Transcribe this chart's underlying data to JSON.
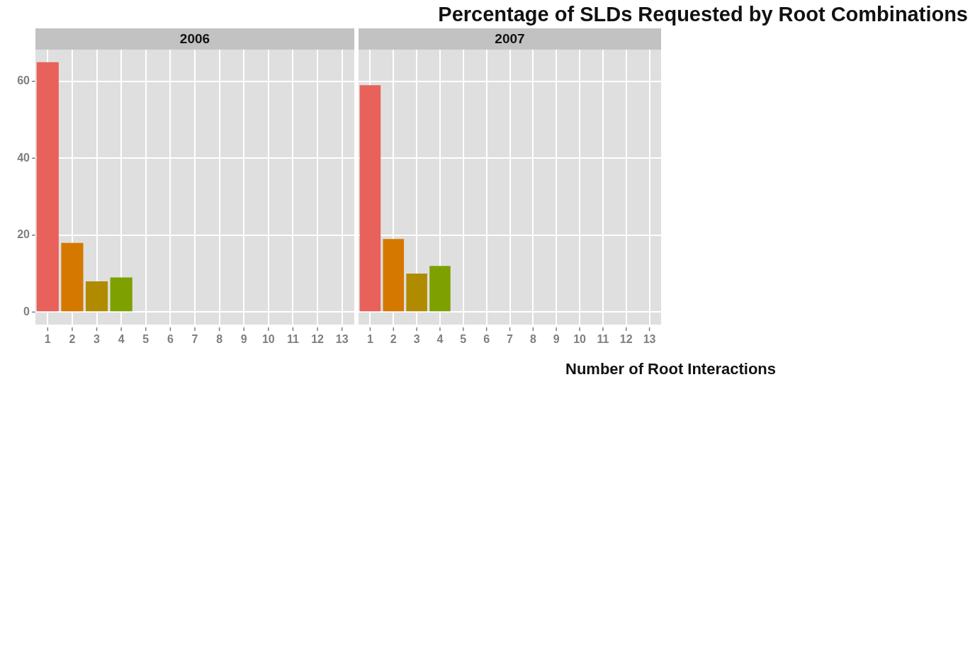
{
  "chart_data": [
    {
      "type": "bar",
      "subtitle": "2006",
      "categories": [
        "1",
        "2",
        "3",
        "4",
        "5",
        "6",
        "7",
        "8",
        "9",
        "10",
        "11",
        "12",
        "13"
      ],
      "values": [
        65,
        18,
        8,
        9,
        null,
        null,
        null,
        null,
        null,
        null,
        null,
        null,
        null
      ],
      "colors": [
        "#e8615a",
        "#d47800",
        "#b08b00",
        "#7ea000",
        null,
        null,
        null,
        null,
        null,
        null,
        null,
        null,
        null
      ],
      "ylim": [
        -3.25,
        68.25
      ],
      "yticks": [
        0,
        20,
        40,
        60
      ],
      "grid": true
    },
    {
      "type": "bar",
      "title": "Percentage of SLDs Requested by Root Combinations",
      "subtitle": "2007",
      "xlabel": "Number of Root Interactions",
      "categories": [
        "1",
        "2",
        "3",
        "4",
        "5",
        "6",
        "7",
        "8",
        "9",
        "10",
        "11",
        "12",
        "13"
      ],
      "values": [
        59,
        19,
        10,
        12,
        null,
        null,
        null,
        null,
        null,
        null,
        null,
        null,
        null
      ],
      "colors": [
        "#e8615a",
        "#d47800",
        "#b08b00",
        "#7ea000",
        null,
        null,
        null,
        null,
        null,
        null,
        null,
        null,
        null
      ],
      "ylim": [
        -3.25,
        68.25
      ],
      "yticks": [
        0,
        20,
        40,
        60
      ],
      "grid": true,
      "tick_labels": "x"
    }
  ]
}
